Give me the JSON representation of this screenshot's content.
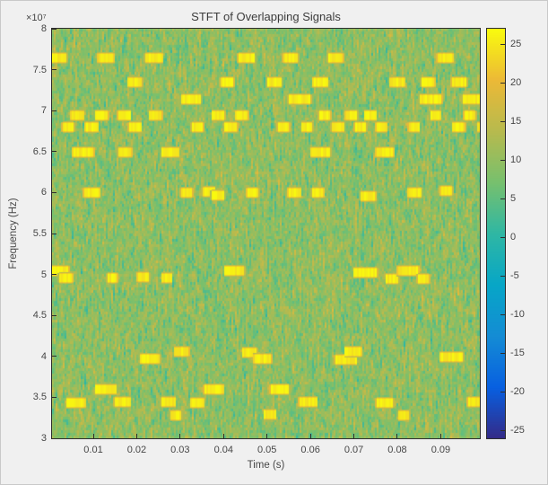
{
  "window": {
    "background": "#f0f0f0",
    "border_color": "#c9c9c9"
  },
  "colors": {
    "axis_box": "#2e2e2e",
    "text": "#464646",
    "background_noise_green": "#8ec25e",
    "burst_yellow": "#f6dc20",
    "parula_stops": [
      [
        0.0,
        53,
        42,
        135
      ],
      [
        0.125,
        8,
        96,
        225
      ],
      [
        0.25,
        20,
        140,
        212
      ],
      [
        0.375,
        7,
        166,
        199
      ],
      [
        0.5,
        47,
        183,
        164
      ],
      [
        0.625,
        119,
        192,
        110
      ],
      [
        0.75,
        183,
        186,
        78
      ],
      [
        0.875,
        236,
        185,
        55
      ],
      [
        1.0,
        249,
        251,
        14
      ]
    ]
  },
  "chart_data": {
    "type": "heatmap",
    "title": "STFT of Overlapping Signals",
    "xlabel": "Time (s)",
    "ylabel": "Frequency (Hz)",
    "y_axis_multiplier": "×10⁷",
    "x_range_s": [
      0.0005,
      0.099
    ],
    "y_range_1e7hz": [
      3,
      8
    ],
    "x_ticks_s": [
      0.01,
      0.02,
      0.03,
      0.04,
      0.05,
      0.06,
      0.07,
      0.08,
      0.09
    ],
    "y_ticks_1e7hz": [
      3,
      3.5,
      4,
      4.5,
      5,
      5.5,
      6,
      6.5,
      7,
      7.5,
      8
    ],
    "colorbar": {
      "range_db": [
        -26,
        27
      ],
      "ticks_db": [
        25,
        20,
        15,
        10,
        5,
        0,
        -5,
        -10,
        -15,
        -20,
        -25
      ],
      "colormap": "parula",
      "legend_position": "right"
    },
    "grid": false,
    "noise_floor_db": {
      "mean": 9.5,
      "sd": 5.0
    },
    "burst_level_db": 25.5,
    "burst_bandwidth_1e7hz": 0.12,
    "bursts_t_f_dur": [
      [
        0.002,
        7.65,
        0.004
      ],
      [
        0.0129,
        7.65,
        0.004
      ],
      [
        0.024,
        7.65,
        0.0044
      ],
      [
        0.0452,
        7.65,
        0.004
      ],
      [
        0.0554,
        7.65,
        0.0038
      ],
      [
        0.0658,
        7.65,
        0.0038
      ],
      [
        0.091,
        7.65,
        0.004
      ],
      [
        0.0196,
        7.35,
        0.0036
      ],
      [
        0.0408,
        7.35,
        0.0034
      ],
      [
        0.0517,
        7.35,
        0.0036
      ],
      [
        0.0623,
        7.35,
        0.0038
      ],
      [
        0.08,
        7.35,
        0.0036
      ],
      [
        0.0871,
        7.35,
        0.0034
      ],
      [
        0.0942,
        7.35,
        0.0038
      ],
      [
        0.0325,
        7.15,
        0.0048
      ],
      [
        0.0575,
        7.15,
        0.0054
      ],
      [
        0.0877,
        7.15,
        0.0054
      ],
      [
        0.0975,
        7.15,
        0.0052
      ],
      [
        0.0063,
        6.95,
        0.0032
      ],
      [
        0.012,
        6.95,
        0.0032
      ],
      [
        0.0171,
        6.95,
        0.0032
      ],
      [
        0.0244,
        6.95,
        0.0032
      ],
      [
        0.0388,
        6.95,
        0.0032
      ],
      [
        0.0442,
        6.95,
        0.0032
      ],
      [
        0.0633,
        6.95,
        0.003
      ],
      [
        0.0694,
        6.95,
        0.003
      ],
      [
        0.0738,
        6.95,
        0.003
      ],
      [
        0.0888,
        6.95,
        0.0026
      ],
      [
        0.0967,
        6.95,
        0.003
      ],
      [
        0.0042,
        6.8,
        0.003
      ],
      [
        0.0096,
        6.8,
        0.0032
      ],
      [
        0.0196,
        6.8,
        0.0032
      ],
      [
        0.034,
        6.8,
        0.003
      ],
      [
        0.0417,
        6.8,
        0.0032
      ],
      [
        0.0538,
        6.8,
        0.003
      ],
      [
        0.0592,
        6.8,
        0.0028
      ],
      [
        0.0663,
        6.8,
        0.0032
      ],
      [
        0.0715,
        6.8,
        0.003
      ],
      [
        0.0763,
        6.8,
        0.0028
      ],
      [
        0.0838,
        6.8,
        0.0028
      ],
      [
        0.0942,
        6.8,
        0.0032
      ],
      [
        0.0998,
        6.8,
        0.0028
      ],
      [
        0.0077,
        6.5,
        0.0052
      ],
      [
        0.0173,
        6.5,
        0.0034
      ],
      [
        0.0277,
        6.5,
        0.0042
      ],
      [
        0.0623,
        6.5,
        0.0048
      ],
      [
        0.0771,
        6.5,
        0.0044
      ],
      [
        0.0096,
        6.0,
        0.004
      ],
      [
        0.0315,
        6.0,
        0.003
      ],
      [
        0.0366,
        6.02,
        0.0032
      ],
      [
        0.0387,
        5.97,
        0.0032
      ],
      [
        0.0467,
        6.0,
        0.003
      ],
      [
        0.0563,
        6.0,
        0.0032
      ],
      [
        0.0617,
        6.0,
        0.003
      ],
      [
        0.0733,
        5.96,
        0.0038
      ],
      [
        0.084,
        6.0,
        0.0034
      ],
      [
        0.0913,
        6.03,
        0.003
      ],
      [
        0.0024,
        5.05,
        0.0042
      ],
      [
        0.0037,
        4.96,
        0.0034
      ],
      [
        0.0144,
        4.96,
        0.0026
      ],
      [
        0.0215,
        4.97,
        0.003
      ],
      [
        0.0269,
        4.96,
        0.0026
      ],
      [
        0.0425,
        5.05,
        0.0048
      ],
      [
        0.0727,
        5.03,
        0.0056
      ],
      [
        0.0788,
        4.95,
        0.0032
      ],
      [
        0.0825,
        5.05,
        0.0052
      ],
      [
        0.086,
        4.95,
        0.003
      ],
      [
        0.0231,
        3.98,
        0.0048
      ],
      [
        0.0304,
        4.06,
        0.0036
      ],
      [
        0.046,
        4.05,
        0.0036
      ],
      [
        0.049,
        3.98,
        0.0044
      ],
      [
        0.0681,
        3.97,
        0.0052
      ],
      [
        0.0698,
        4.06,
        0.0042
      ],
      [
        0.0925,
        4.0,
        0.0056
      ],
      [
        0.0129,
        3.6,
        0.0052
      ],
      [
        0.0377,
        3.6,
        0.0048
      ],
      [
        0.0529,
        3.6,
        0.0046
      ],
      [
        0.006,
        3.44,
        0.0046
      ],
      [
        0.0167,
        3.45,
        0.004
      ],
      [
        0.0273,
        3.45,
        0.0036
      ],
      [
        0.034,
        3.44,
        0.0034
      ],
      [
        0.0594,
        3.45,
        0.0044
      ],
      [
        0.0771,
        3.44,
        0.0042
      ],
      [
        0.0983,
        3.45,
        0.0046
      ],
      [
        0.029,
        3.28,
        0.0028
      ],
      [
        0.0507,
        3.3,
        0.003
      ],
      [
        0.0815,
        3.28,
        0.0028
      ]
    ]
  }
}
